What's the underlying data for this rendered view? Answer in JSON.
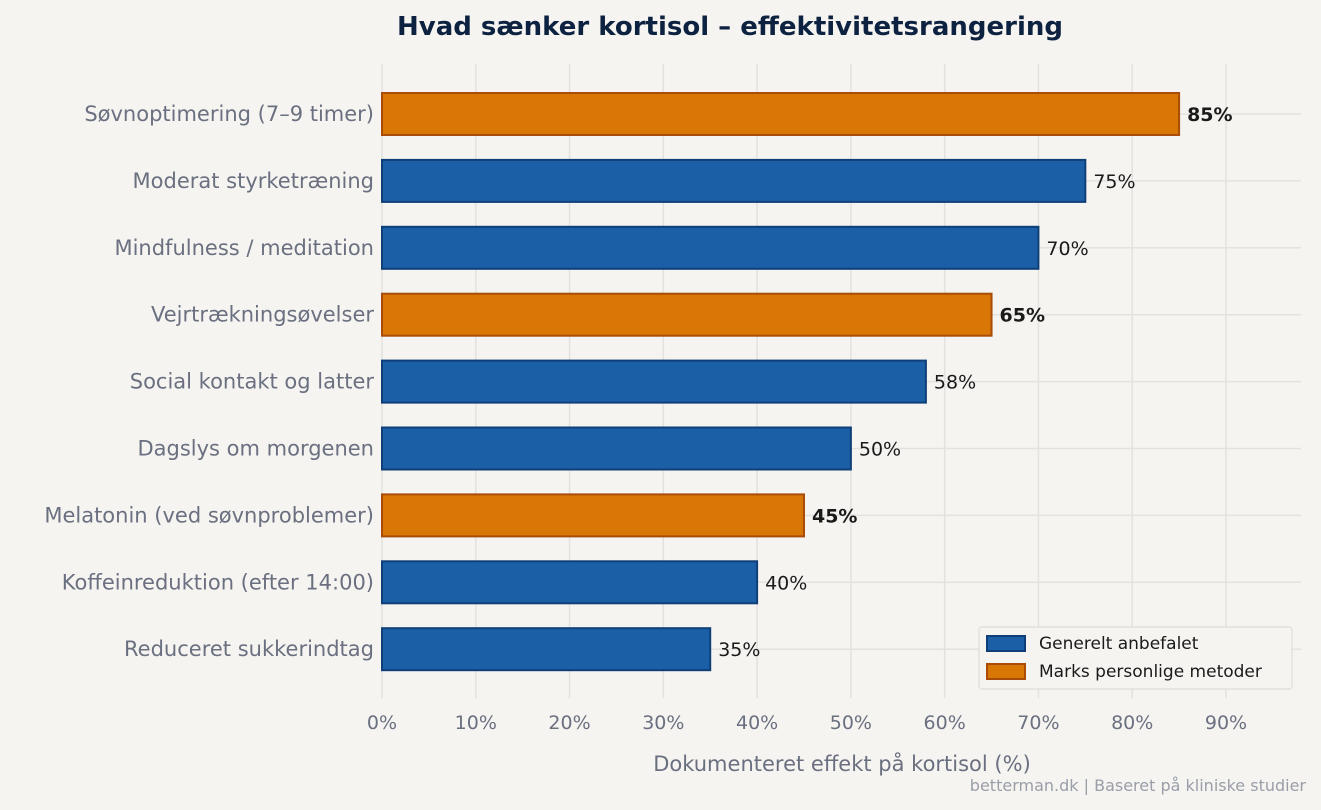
{
  "chart_data": {
    "type": "bar",
    "orientation": "horizontal",
    "title": "Hvad sænker kortisol – effektivitetsrangering",
    "xlabel": "Dokumenteret effekt på kortisol (%)",
    "ylabel": "",
    "xlim": [
      0,
      98
    ],
    "xticks": [
      0,
      10,
      20,
      30,
      40,
      50,
      60,
      70,
      80,
      90
    ],
    "xtick_labels": [
      "0%",
      "10%",
      "20%",
      "30%",
      "40%",
      "50%",
      "60%",
      "70%",
      "80%",
      "90%"
    ],
    "grid": true,
    "legend_position": "bottom-right",
    "categories": [
      "Søvnoptimering (7–9 timer)",
      "Moderat styrketræning",
      "Mindfulness / meditation",
      "Vejrtrækningsøvelser",
      "Social kontakt og latter",
      "Dagslys om morgenen",
      "Melatonin (ved søvnproblemer)",
      "Koffeinreduktion (efter 14:00)",
      "Reduceret sukkerindtag"
    ],
    "values": [
      85,
      75,
      70,
      65,
      58,
      50,
      45,
      40,
      35
    ],
    "value_labels": [
      "85%",
      "75%",
      "70%",
      "65%",
      "58%",
      "50%",
      "45%",
      "40%",
      "35%"
    ],
    "groups": [
      "personal",
      "general",
      "general",
      "personal",
      "general",
      "general",
      "personal",
      "general",
      "general"
    ],
    "legend": [
      {
        "key": "general",
        "label": "Generelt anbefalet",
        "color": "#1b5fa6",
        "edge": "#0f3f78"
      },
      {
        "key": "personal",
        "label": "Marks personlige metoder",
        "color": "#d97706",
        "edge": "#a84c08"
      }
    ]
  },
  "footer": {
    "source": "betterman.dk | Baseret på kliniske studier"
  },
  "colors": {
    "background": "#f5f4f1",
    "title": "#0d2240",
    "axis_text": "#6b7080"
  }
}
